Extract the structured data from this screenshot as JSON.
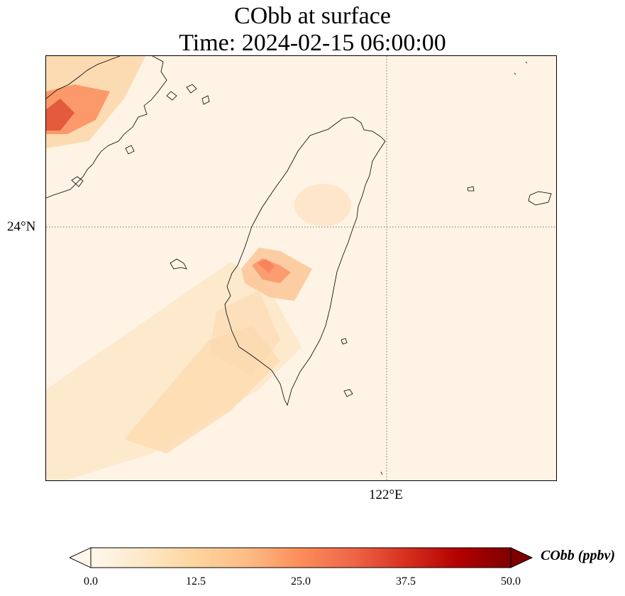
{
  "title": {
    "line1": "CObb at surface",
    "line2": "Time: 2024-02-15 06:00:00"
  },
  "map": {
    "lat_tick_label": "24°N",
    "lon_tick_label": "122°E",
    "gridline_style": "dotted",
    "background_color": "#fef3e4",
    "colormap": "OrRd"
  },
  "colorbar": {
    "label": "CObb (ppbv)",
    "min": 0.0,
    "max": 50.0,
    "ticks": [
      "0.0",
      "12.5",
      "25.0",
      "37.5",
      "50.0"
    ],
    "extend": "both",
    "colors": [
      "#fff7ec",
      "#fee8c8",
      "#fdd49e",
      "#fdbb84",
      "#fc8d59",
      "#ef6548",
      "#d7301f",
      "#b30000",
      "#7f0000"
    ]
  }
}
